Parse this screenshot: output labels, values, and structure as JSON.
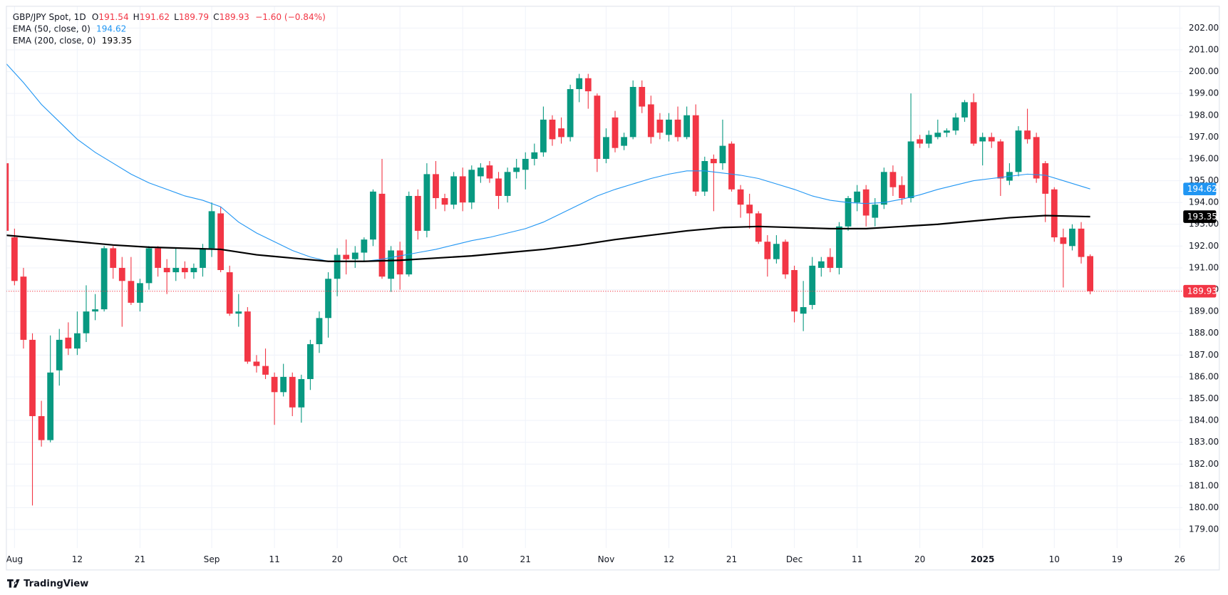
{
  "chart_data": {
    "type": "candlestick",
    "header": {
      "symbol": "GBP/JPY Spot, 1D",
      "ohlc_labels": [
        "O",
        "H",
        "L",
        "C"
      ],
      "change": "−1.60 (−0.84%)"
    },
    "up_color": "#089981",
    "down_color": "#f23645",
    "open": [
      195.8,
      192.4,
      190.6,
      187.7,
      184.2,
      183.1,
      186.3,
      187.8,
      187.3,
      188.0,
      189.0,
      189.1,
      191.9,
      191.0,
      190.4,
      189.4,
      190.3,
      191.9,
      191.0,
      190.8,
      191.0,
      190.8,
      191.0,
      191.9,
      193.5,
      190.8,
      188.9,
      189.0,
      186.7,
      186.5,
      186.0,
      185.3,
      186.0,
      184.6,
      185.9,
      187.5,
      188.7,
      190.5,
      191.6,
      191.4,
      191.7,
      192.3,
      194.4,
      190.5,
      191.8,
      190.7,
      194.3,
      192.7,
      195.3,
      194.2,
      193.9,
      195.2,
      194.0,
      195.2,
      195.7,
      195.1,
      194.3,
      195.4,
      195.5,
      196.0,
      196.3,
      197.8,
      197.4,
      197.0,
      199.2,
      199.7,
      198.9,
      196.0,
      197.9,
      196.6,
      197.0,
      199.3,
      198.5,
      197.8,
      197.1,
      197.8,
      197.0,
      198.0,
      194.5,
      196.0,
      195.8,
      196.7,
      194.6,
      193.9,
      193.5,
      192.2,
      191.4,
      192.2,
      190.9,
      188.9,
      189.3,
      191.0,
      191.5,
      191.0,
      192.9,
      194.0,
      194.6,
      193.3,
      193.9,
      195.4,
      194.8,
      194.2,
      196.9,
      196.7,
      197.0,
      197.2,
      197.3,
      197.9,
      198.6,
      196.8,
      197.0,
      196.8,
      195.0,
      195.4,
      197.3,
      197.0,
      195.8,
      194.6,
      192.4,
      192.0,
      192.8,
      191.54
    ],
    "high": [
      196.1,
      192.8,
      191.0,
      188.0,
      184.9,
      187.9,
      188.2,
      188.5,
      189.0,
      190.2,
      189.8,
      192.0,
      192.0,
      191.5,
      191.5,
      190.5,
      192.0,
      192.0,
      191.4,
      191.9,
      191.3,
      191.2,
      192.1,
      194.0,
      193.8,
      191.1,
      189.8,
      189.2,
      187.0,
      187.3,
      186.2,
      186.6,
      186.2,
      186.1,
      187.7,
      189.0,
      190.8,
      191.9,
      192.3,
      192.0,
      192.4,
      194.6,
      196.0,
      192.0,
      192.2,
      194.5,
      194.6,
      195.8,
      195.9,
      194.4,
      195.4,
      195.6,
      195.7,
      195.8,
      195.9,
      195.4,
      195.6,
      196.0,
      196.3,
      196.7,
      198.4,
      198.0,
      197.9,
      199.4,
      199.9,
      199.9,
      199.0,
      197.4,
      198.2,
      197.2,
      199.6,
      199.6,
      198.9,
      198.1,
      198.1,
      198.4,
      198.4,
      198.5,
      196.1,
      196.2,
      197.8,
      196.8,
      194.8,
      194.4,
      193.6,
      192.5,
      192.5,
      192.3,
      191.1,
      190.4,
      191.5,
      191.5,
      191.9,
      193.1,
      194.3,
      194.8,
      194.8,
      194.2,
      195.6,
      195.7,
      195.2,
      199.0,
      197.1,
      197.3,
      197.8,
      197.4,
      198.1,
      198.7,
      199.0,
      197.2,
      197.2,
      196.9,
      195.8,
      197.5,
      198.3,
      197.2,
      195.9,
      194.7,
      192.8,
      193.0,
      193.1,
      191.62
    ],
    "low": [
      192.6,
      190.2,
      187.3,
      180.1,
      182.8,
      183.0,
      185.6,
      187.0,
      187.0,
      187.6,
      188.6,
      189.0,
      190.5,
      188.3,
      189.3,
      189.0,
      190.0,
      190.6,
      189.8,
      190.4,
      190.5,
      190.5,
      190.6,
      191.5,
      190.8,
      188.8,
      188.3,
      186.6,
      186.2,
      185.9,
      183.8,
      185.1,
      184.2,
      183.9,
      185.4,
      187.1,
      187.8,
      189.7,
      190.7,
      191.0,
      191.3,
      192.0,
      190.5,
      189.9,
      190.0,
      190.6,
      192.3,
      192.4,
      193.7,
      193.6,
      193.7,
      193.6,
      193.7,
      194.9,
      194.9,
      193.7,
      194.0,
      195.1,
      194.6,
      195.7,
      196.1,
      196.6,
      196.7,
      196.8,
      198.6,
      198.3,
      195.4,
      195.8,
      196.3,
      196.4,
      196.9,
      198.1,
      196.7,
      196.9,
      196.8,
      196.8,
      196.9,
      194.3,
      194.3,
      193.6,
      195.5,
      194.5,
      193.3,
      192.8,
      192.1,
      190.6,
      191.2,
      190.5,
      188.5,
      188.1,
      189.1,
      190.6,
      190.8,
      190.7,
      192.7,
      193.6,
      192.9,
      192.9,
      193.7,
      194.3,
      193.9,
      194.0,
      196.5,
      196.5,
      196.9,
      197.0,
      197.1,
      197.7,
      196.6,
      195.7,
      196.5,
      194.3,
      194.8,
      195.2,
      196.7,
      194.9,
      193.1,
      192.2,
      190.1,
      191.8,
      191.2,
      189.79
    ],
    "close": [
      192.7,
      190.4,
      187.7,
      184.2,
      183.1,
      186.2,
      187.7,
      187.3,
      188.0,
      189.0,
      189.1,
      191.9,
      191.0,
      190.4,
      189.4,
      190.3,
      191.9,
      191.0,
      190.8,
      191.0,
      190.8,
      191.0,
      191.9,
      193.6,
      190.9,
      188.9,
      189.0,
      186.7,
      186.5,
      186.1,
      185.3,
      186.0,
      184.6,
      185.9,
      187.5,
      188.7,
      190.5,
      191.6,
      191.4,
      191.7,
      192.3,
      194.5,
      190.6,
      191.8,
      190.7,
      194.3,
      192.7,
      195.3,
      194.2,
      193.9,
      195.2,
      194.0,
      195.5,
      195.6,
      195.1,
      194.3,
      195.4,
      195.6,
      196.0,
      196.3,
      197.8,
      196.9,
      197.0,
      199.2,
      199.7,
      199.1,
      196.0,
      197.0,
      196.5,
      197.0,
      199.3,
      198.4,
      197.0,
      197.2,
      197.8,
      197.0,
      198.0,
      194.5,
      195.9,
      195.8,
      196.6,
      194.6,
      193.9,
      193.5,
      192.2,
      191.4,
      192.1,
      190.7,
      189.0,
      189.2,
      191.1,
      191.3,
      191.0,
      192.9,
      194.2,
      194.5,
      193.4,
      193.9,
      195.4,
      194.7,
      194.2,
      196.8,
      196.7,
      197.1,
      197.2,
      197.3,
      197.9,
      198.6,
      196.7,
      197.0,
      196.8,
      195.1,
      195.4,
      197.3,
      196.9,
      195.1,
      194.4,
      192.4,
      192.1,
      192.8,
      191.5,
      189.93
    ],
    "series": [
      {
        "name": "EMA (50, close, 0)",
        "color": "#2196f3",
        "x": [
          0,
          2,
          4,
          6,
          8,
          10,
          12,
          14,
          16,
          18,
          20,
          22,
          24,
          26,
          28,
          30,
          32,
          34,
          36,
          38,
          40,
          42,
          44,
          46,
          48,
          50,
          52,
          54,
          56,
          58,
          60,
          62,
          64,
          66,
          68,
          70,
          72,
          74,
          76,
          78,
          80,
          82,
          84,
          86,
          88,
          90,
          92,
          94,
          96,
          98,
          100,
          102,
          104,
          106,
          108,
          110,
          112,
          114,
          116,
          118,
          121
        ],
        "values": [
          200.4,
          199.5,
          198.5,
          197.7,
          196.9,
          196.3,
          195.8,
          195.3,
          194.9,
          194.6,
          194.3,
          194.1,
          193.8,
          193.1,
          192.6,
          192.2,
          191.8,
          191.5,
          191.3,
          191.3,
          191.3,
          191.4,
          191.55,
          191.7,
          191.85,
          192.05,
          192.25,
          192.4,
          192.6,
          192.8,
          193.1,
          193.5,
          193.9,
          194.3,
          194.6,
          194.85,
          195.1,
          195.3,
          195.45,
          195.45,
          195.35,
          195.25,
          195.1,
          194.85,
          194.6,
          194.3,
          194.1,
          194.0,
          193.95,
          194.0,
          194.15,
          194.35,
          194.6,
          194.8,
          195.0,
          195.1,
          195.2,
          195.3,
          195.25,
          195.0,
          194.62
        ]
      },
      {
        "name": "EMA (200, close, 0)",
        "color": "#000000",
        "x": [
          0,
          4,
          8,
          12,
          16,
          20,
          24,
          28,
          32,
          36,
          40,
          44,
          48,
          52,
          56,
          60,
          64,
          68,
          72,
          76,
          80,
          84,
          88,
          92,
          96,
          100,
          104,
          108,
          112,
          116,
          121
        ],
        "values": [
          192.5,
          192.35,
          192.2,
          192.05,
          191.95,
          191.9,
          191.85,
          191.6,
          191.45,
          191.3,
          191.3,
          191.35,
          191.45,
          191.55,
          191.7,
          191.85,
          192.05,
          192.3,
          192.5,
          192.7,
          192.85,
          192.9,
          192.85,
          192.8,
          192.8,
          192.9,
          193.0,
          193.15,
          193.3,
          193.4,
          193.35
        ]
      }
    ],
    "xlim": [
      0.09,
      131.3
    ],
    "xticks": [
      {
        "value": 1,
        "label": "Aug"
      },
      {
        "value": 8,
        "label": "12"
      },
      {
        "value": 15,
        "label": "21"
      },
      {
        "value": 23,
        "label": "Sep"
      },
      {
        "value": 30,
        "label": "11"
      },
      {
        "value": 37,
        "label": "20"
      },
      {
        "value": 44,
        "label": "Oct"
      },
      {
        "value": 51,
        "label": "10"
      },
      {
        "value": 58,
        "label": "21"
      },
      {
        "value": 67,
        "label": "Nov"
      },
      {
        "value": 74,
        "label": "12"
      },
      {
        "value": 81,
        "label": "21"
      },
      {
        "value": 88,
        "label": "Dec"
      },
      {
        "value": 95,
        "label": "11"
      },
      {
        "value": 102,
        "label": "20"
      },
      {
        "value": 109,
        "label": "2025"
      },
      {
        "value": 117,
        "label": "10"
      },
      {
        "value": 124,
        "label": "19"
      },
      {
        "value": 131,
        "label": "26"
      }
    ],
    "ylim": [
      178.15,
      203.0
    ],
    "yticks": [
      {
        "value": 179,
        "label": "179.00"
      },
      {
        "value": 180,
        "label": "180.00"
      },
      {
        "value": 181,
        "label": "181.00"
      },
      {
        "value": 182,
        "label": "182.00"
      },
      {
        "value": 183,
        "label": "183.00"
      },
      {
        "value": 184,
        "label": "184.00"
      },
      {
        "value": 185,
        "label": "185.00"
      },
      {
        "value": 186,
        "label": "186.00"
      },
      {
        "value": 187,
        "label": "187.00"
      },
      {
        "value": 188,
        "label": "188.00"
      },
      {
        "value": 189,
        "label": "189.00"
      },
      {
        "value": 190,
        "label": "190.00"
      },
      {
        "value": 191,
        "label": "191.00"
      },
      {
        "value": 192,
        "label": "192.00"
      },
      {
        "value": 193,
        "label": "193.00"
      },
      {
        "value": 194,
        "label": "194.00"
      },
      {
        "value": 195,
        "label": "195.00"
      },
      {
        "value": 196,
        "label": "196.00"
      },
      {
        "value": 197,
        "label": "197.00"
      },
      {
        "value": 198,
        "label": "198.00"
      },
      {
        "value": 199,
        "label": "199.00"
      },
      {
        "value": 200,
        "label": "200.00"
      },
      {
        "value": 201,
        "label": "201.00"
      },
      {
        "value": 202,
        "label": "202.00"
      }
    ],
    "grid": true
  },
  "branding": "TradingView"
}
